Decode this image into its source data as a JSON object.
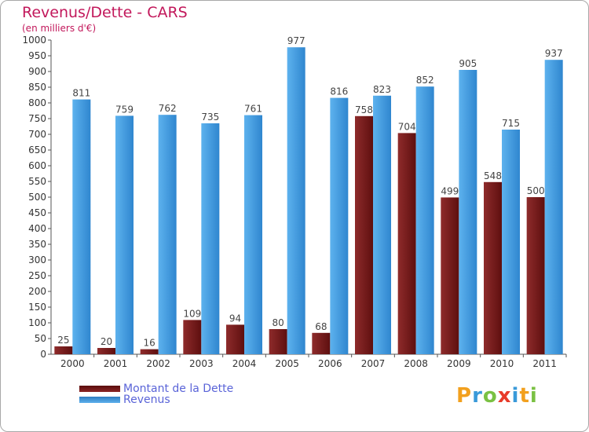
{
  "header": {
    "title": "Revenus/Dette - CARS",
    "subtitle": "(en milliers d'€)"
  },
  "colors": {
    "debt": "#7a1a1a",
    "revenue": "#3f97db",
    "axis": "#555555",
    "title": "#c2185b"
  },
  "chart_data": {
    "type": "bar",
    "title": "Revenus/Dette - CARS",
    "ylabel": "(en milliers d'€)",
    "xlabel": "",
    "categories": [
      "2000",
      "2001",
      "2002",
      "2003",
      "2004",
      "2005",
      "2006",
      "2007",
      "2008",
      "2009",
      "2010",
      "2011"
    ],
    "series": [
      {
        "name": "Montant de la Dette",
        "values": [
          25,
          20,
          16,
          109,
          94,
          80,
          68,
          758,
          704,
          499,
          548,
          500
        ]
      },
      {
        "name": "Revenus",
        "values": [
          811,
          759,
          762,
          735,
          761,
          977,
          816,
          823,
          852,
          905,
          715,
          937
        ]
      }
    ],
    "ylim": [
      0,
      1000
    ],
    "yticks": [
      0,
      50,
      100,
      150,
      200,
      250,
      300,
      350,
      400,
      450,
      500,
      550,
      600,
      650,
      700,
      750,
      800,
      850,
      900,
      950,
      1000
    ],
    "grid": false,
    "legend_position": "bottom-left"
  },
  "legend": {
    "debt_label": "Montant de la Dette",
    "revenue_label": "Revenus"
  },
  "logo": {
    "text": "Proxiti",
    "letters": [
      "P",
      "r",
      "o",
      "x",
      "i",
      "t",
      "i"
    ],
    "letter_colors": [
      "#f2a01e",
      "#3a9ad9",
      "#7ac143",
      "#e83b2a",
      "#3a9ad9",
      "#f2a01e",
      "#7ac143"
    ]
  }
}
